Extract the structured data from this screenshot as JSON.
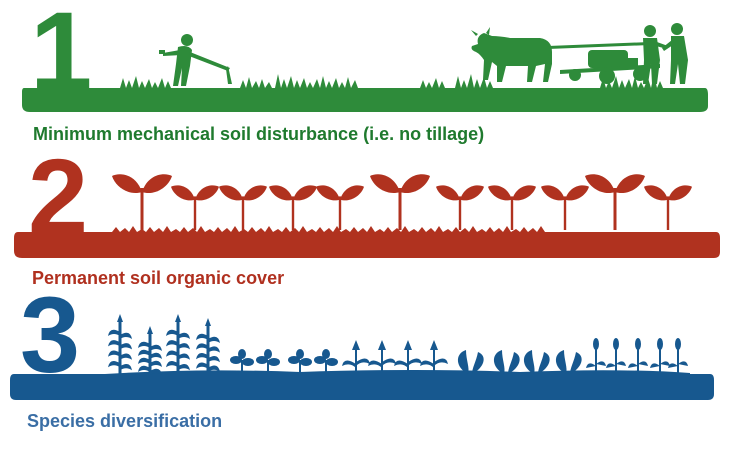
{
  "colors": {
    "green": "#2e8b3a",
    "red": "#b0321f",
    "blue": "#17588f",
    "caption_green": "#1f7a2e",
    "caption_red": "#b0301f",
    "caption_blue": "#3a6ea5"
  },
  "principles": [
    {
      "number": "1",
      "caption": "Minimum mechanical soil disturbance (i.e. no tillage)",
      "illustration": "farmer-with-hoe-and-ox-drawn-planter-icon"
    },
    {
      "number": "2",
      "caption": "Permanent soil organic cover",
      "illustration": "seedlings-in-mulch-icon"
    },
    {
      "number": "3",
      "caption": "Species diversification",
      "illustration": "mixed-crops-row-icon"
    }
  ]
}
